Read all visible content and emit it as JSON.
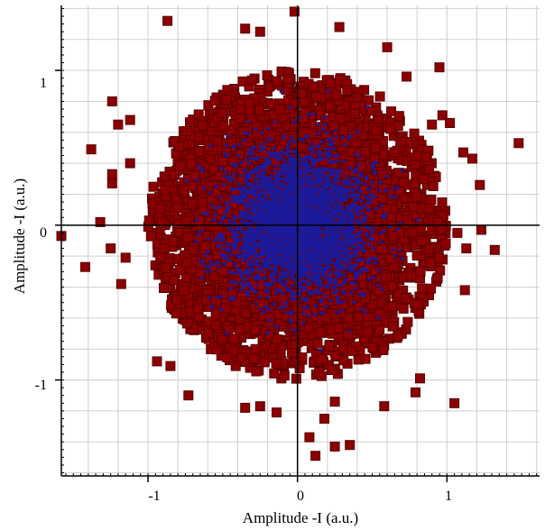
{
  "chart_data": {
    "type": "scatter",
    "title": "",
    "xlabel": "Amplitude -I (a.u.)",
    "ylabel": "Amplitude -I (a.u.)",
    "xlim": [
      -1.58,
      1.62
    ],
    "ylim": [
      -1.62,
      1.42
    ],
    "xticks": [
      -1,
      0,
      1
    ],
    "yticks": [
      -1,
      0,
      1
    ],
    "xtick_labels": [
      "-1",
      "0",
      "1"
    ],
    "ytick_labels": [
      "-1",
      "0",
      "1"
    ],
    "grid": true,
    "grid_step": 0.2,
    "legend": "none",
    "colors": {
      "marker_fill": "#8b0000",
      "marker_edge": "#5a0000",
      "dense_core": "#1a1a9a",
      "grid": "#cfcfcf",
      "axis": "#000000"
    },
    "series": [
      {
        "outliers": [
          [
            -0.87,
            1.32
          ],
          [
            -0.35,
            1.27
          ],
          [
            -0.25,
            1.25
          ],
          [
            -0.02,
            1.38
          ],
          [
            0.28,
            1.28
          ],
          [
            0.6,
            1.15
          ],
          [
            0.95,
            1.02
          ],
          [
            -1.24,
            0.8
          ],
          [
            -1.12,
            0.68
          ],
          [
            -1.2,
            0.65
          ],
          [
            -1.38,
            0.49
          ],
          [
            -1.24,
            0.33
          ],
          [
            -1.24,
            0.27
          ],
          [
            -1.12,
            0.4
          ],
          [
            -1.32,
            0.02
          ],
          [
            -1.58,
            -0.07
          ],
          [
            -1.42,
            -0.27
          ],
          [
            -1.18,
            -0.38
          ],
          [
            -1.25,
            -0.15
          ],
          [
            -1.15,
            -0.21
          ],
          [
            -0.94,
            -0.88
          ],
          [
            -0.85,
            -0.91
          ],
          [
            -0.73,
            -1.1
          ],
          [
            -0.35,
            -1.18
          ],
          [
            -0.25,
            -1.17
          ],
          [
            -0.14,
            -1.21
          ],
          [
            0.18,
            -1.25
          ],
          [
            0.25,
            -1.14
          ],
          [
            0.08,
            -1.37
          ],
          [
            0.25,
            -1.43
          ],
          [
            0.35,
            -1.42
          ],
          [
            0.12,
            -1.49
          ],
          [
            0.58,
            -1.17
          ],
          [
            0.79,
            -1.08
          ],
          [
            0.82,
            -0.99
          ],
          [
            1.05,
            -1.15
          ],
          [
            1.12,
            -0.42
          ],
          [
            1.13,
            -0.15
          ],
          [
            1.07,
            -0.05
          ],
          [
            1.23,
            -0.03
          ],
          [
            1.32,
            -0.16
          ],
          [
            1.22,
            0.26
          ],
          [
            1.48,
            0.53
          ],
          [
            1.11,
            0.47
          ],
          [
            1.17,
            0.43
          ],
          [
            0.97,
            0.71
          ],
          [
            1.02,
            0.66
          ],
          [
            0.73,
            0.96
          ],
          [
            0.9,
            0.65
          ]
        ],
        "cloud_point_count": 6500,
        "cloud_sigma": 0.38,
        "cloud_core_sigma": 0.23,
        "cloud_radius_max": 1.0
      }
    ]
  }
}
